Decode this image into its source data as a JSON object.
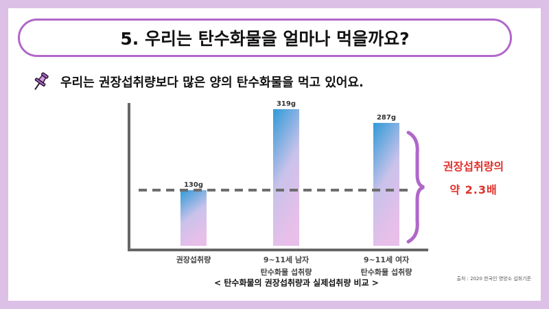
{
  "title": "5. 우리는 탄수화물을 얼마나 먹을까요?",
  "subtitle": "우리는 권장섭취량보다 많은 양의 탄수화물을 먹고 있어요.",
  "source": "출처 : 2020 한국인 영양소 섭취기준",
  "colors": {
    "accent": "#b067c9",
    "bar_top": "#2f9ad8",
    "bar_bottom": "#e3bfe8",
    "annotation_text": "#e0312b",
    "page_border": "#dcc0e6"
  },
  "icons": {
    "pin": "pushpin-icon",
    "bracket": "curly-brace-icon"
  },
  "chart_data": {
    "type": "bar",
    "title": "< 탄수화물의 권장섭취량과 실제섭취량 비교 >",
    "xlabel": "",
    "ylabel": "",
    "ylim": [
      0,
      345
    ],
    "categories": [
      {
        "line1": "권장섭취량",
        "line2": ""
      },
      {
        "line1": "9~11세 남자",
        "line2": "탄수화물 섭취량"
      },
      {
        "line1": "9~11세 여자",
        "line2": "탄수화물 섭취량"
      }
    ],
    "values": [
      130,
      319,
      287
    ],
    "value_labels": [
      "130g",
      "319g",
      "287g"
    ],
    "reference_line": {
      "value": 130,
      "style": "dashed"
    },
    "annotation": {
      "line1": "권장섭취량의",
      "line2": "약 2.3배"
    },
    "grid": false,
    "legend": "none"
  }
}
